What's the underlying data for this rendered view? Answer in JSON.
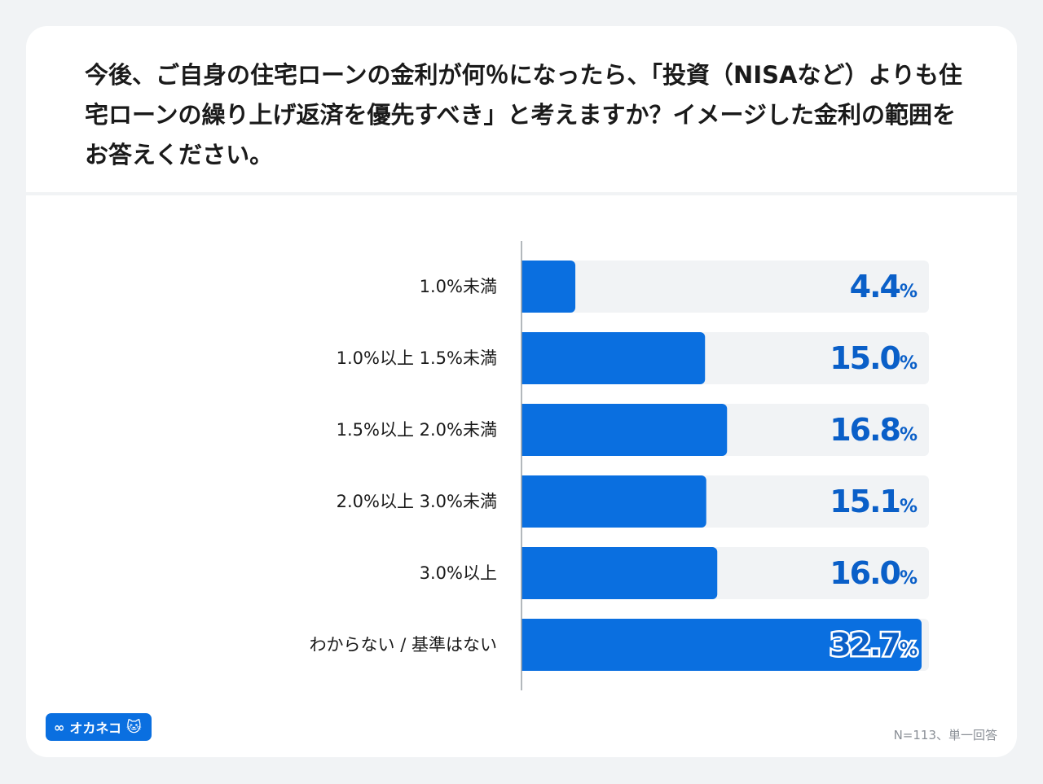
{
  "chart_data": {
    "type": "bar",
    "orientation": "horizontal",
    "title": "今後、ご自身の住宅ローンの金利が何％になったら、「投資（NISAなど）よりも住宅ローンの繰り上げ返済を優先すべき」と考えますか？イメージした金利の範囲をお答えください。",
    "categories": [
      "1.0%未満",
      "1.0%以上 1.5%未満",
      "1.5%以上 2.0%未満",
      "2.0%以上 3.0%未満",
      "3.0%以上",
      "わからない / 基準はない"
    ],
    "values": [
      4.4,
      15.0,
      16.8,
      15.1,
      16.0,
      32.7
    ],
    "value_labels": [
      "4.4",
      "15.0",
      "16.8",
      "15.1",
      "16.0",
      "32.7"
    ],
    "unit": "%",
    "xlim": [
      0,
      33.3
    ],
    "grid": false,
    "colors": {
      "bar": "#0a6fe0",
      "track": "#f1f3f5",
      "label": "#0a5fc8"
    }
  },
  "footer": {
    "note": "N=113、単一回答",
    "logo": "オカネコ",
    "logo_icon": "infinity-icon"
  }
}
